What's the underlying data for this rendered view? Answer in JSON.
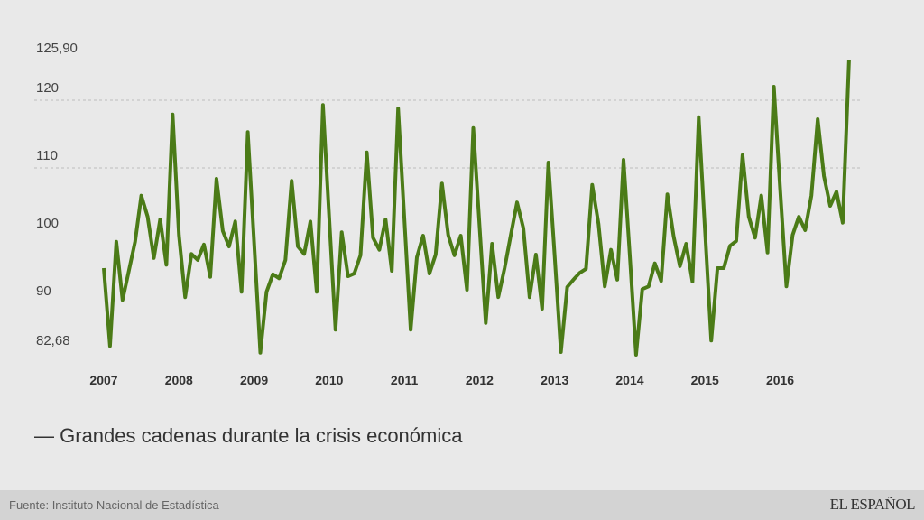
{
  "chart_data": {
    "type": "line",
    "title": "",
    "xlabel": "",
    "ylabel": "",
    "x_tick_labels": [
      "2007",
      "2008",
      "2009",
      "2010",
      "2011",
      "2012",
      "2013",
      "2014",
      "2015",
      "2016"
    ],
    "y_tick_labels": [
      "125,90",
      "120",
      "110",
      "100",
      "90",
      "82,68"
    ],
    "y_tick_values": [
      125.9,
      120,
      110,
      100,
      90,
      82.68
    ],
    "gridlines_at": [
      120,
      110
    ],
    "ylim": [
      82.68,
      125.9
    ],
    "x_start": "2007-01",
    "frequency": "monthly",
    "legend_position": "bottom-left",
    "series": [
      {
        "name": "Grandes cadenas durante la crisis económica",
        "color": "#4b7b17",
        "values": [
          95.2,
          83.7,
          99.1,
          90.5,
          94.8,
          99.1,
          105.9,
          102.8,
          96.7,
          102.4,
          95.7,
          117.9,
          100.1,
          90.9,
          97.3,
          96.4,
          98.7,
          93.9,
          108.4,
          100.7,
          98.4,
          102.1,
          91.7,
          115.3,
          99.0,
          82.7,
          91.7,
          94.3,
          93.7,
          96.4,
          108.1,
          98.4,
          97.3,
          102.1,
          91.7,
          119.3,
          102.7,
          86.1,
          100.5,
          94.0,
          94.4,
          97.1,
          112.3,
          99.7,
          97.9,
          102.4,
          94.8,
          118.8,
          102.5,
          86.1,
          96.8,
          100.0,
          94.4,
          97.2,
          107.7,
          100.1,
          97.1,
          100.0,
          92.0,
          115.9,
          101.5,
          87.1,
          98.8,
          90.9,
          95.2,
          100.1,
          104.9,
          101.1,
          90.9,
          97.2,
          89.2,
          110.8,
          97.0,
          82.8,
          92.4,
          93.5,
          94.5,
          95.1,
          107.5,
          101.7,
          92.5,
          97.9,
          93.5,
          111.2,
          97.0,
          82.4,
          92.1,
          92.5,
          95.9,
          93.3,
          106.1,
          99.9,
          95.5,
          98.8,
          93.2,
          117.5,
          101.0,
          84.5,
          95.2,
          95.2,
          98.5,
          99.2,
          111.9,
          102.8,
          99.7,
          105.9,
          97.5,
          122.0,
          107.0,
          92.5,
          100.1,
          102.8,
          100.8,
          105.9,
          117.2,
          108.8,
          104.4,
          106.5,
          101.9,
          125.9
        ]
      }
    ]
  },
  "legend": {
    "marker": "—",
    "label": "Grandes cadenas durante la crisis económica"
  },
  "footer": {
    "source": "Fuente: Instituto Nacional de Estadística",
    "logo": "EL ESPAÑOL"
  }
}
